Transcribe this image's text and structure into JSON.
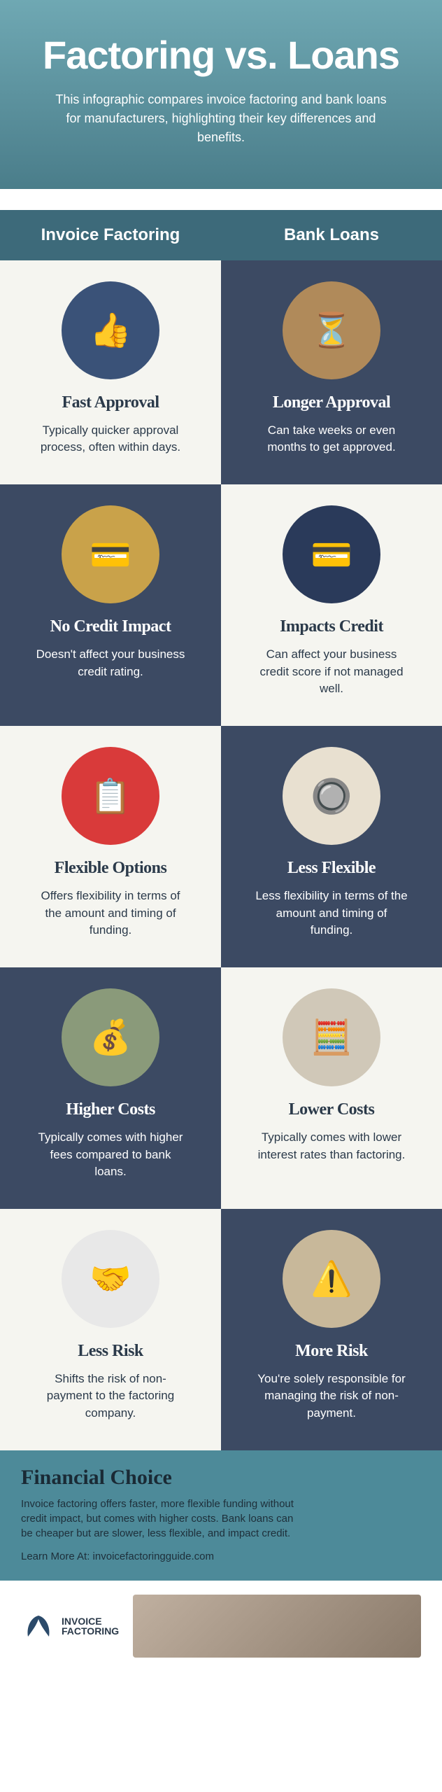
{
  "header": {
    "title": "Factoring vs. Loans",
    "subtitle": "This infographic compares invoice factoring and bank loans for manufacturers, highlighting their key differences and benefits."
  },
  "columns": {
    "left": "Invoice Factoring",
    "right": "Bank Loans"
  },
  "rows": [
    {
      "left": {
        "title": "Fast Approval",
        "desc": "Typically quicker approval process, often within days.",
        "emoji": "👍",
        "bg": "#3a5278"
      },
      "right": {
        "title": "Longer Approval",
        "desc": "Can take weeks or even months to get approved.",
        "emoji": "⏳",
        "bg": "#b08a5a"
      },
      "leftTheme": "light",
      "rightTheme": "dark"
    },
    {
      "left": {
        "title": "No Credit Impact",
        "desc": "Doesn't affect your business credit rating.",
        "emoji": "💳",
        "bg": "#c9a24a"
      },
      "right": {
        "title": "Impacts Credit",
        "desc": "Can affect your business credit score if not managed well.",
        "emoji": "💳",
        "bg": "#2a3a5a"
      },
      "leftTheme": "dark",
      "rightTheme": "light"
    },
    {
      "left": {
        "title": "Flexible Options",
        "desc": "Offers flexibility in terms of the amount and timing of funding.",
        "emoji": "📋",
        "bg": "#d93a3a"
      },
      "right": {
        "title": "Less Flexible",
        "desc": "Less flexibility in terms of the amount and timing of funding.",
        "emoji": "🔘",
        "bg": "#e8e0d0"
      },
      "leftTheme": "light",
      "rightTheme": "dark"
    },
    {
      "left": {
        "title": "Higher Costs",
        "desc": "Typically comes with higher fees compared to bank loans.",
        "emoji": "💰",
        "bg": "#8a9a7a"
      },
      "right": {
        "title": "Lower Costs",
        "desc": "Typically comes with lower interest rates than factoring.",
        "emoji": "🧮",
        "bg": "#d0c8b8"
      },
      "leftTheme": "dark",
      "rightTheme": "light"
    },
    {
      "left": {
        "title": "Less Risk",
        "desc": "Shifts the risk of non-payment to the factoring company.",
        "emoji": "🤝",
        "bg": "#e8e8e8"
      },
      "right": {
        "title": "More Risk",
        "desc": "You're solely responsible for managing the risk of non-payment.",
        "emoji": "⚠️",
        "bg": "#c8b89a"
      },
      "leftTheme": "light",
      "rightTheme": "dark"
    }
  ],
  "conclusion": {
    "title": "Financial Choice",
    "body": "Invoice factoring offers faster, more flexible funding without credit impact, but comes with higher costs. Bank loans can be cheaper but are slower, less flexible, and impact credit.",
    "learn": "Learn More At: invoicefactoringguide.com"
  },
  "footer": {
    "logo_line1": "INVOICE",
    "logo_line2": "FACTORING"
  },
  "colors": {
    "header_bg": "#5a8a95",
    "col_header_bg": "#3d6a7a",
    "light_cell": "#f5f5f0",
    "dark_cell": "#3c4a63",
    "conclusion_bg": "#4d8a99"
  }
}
